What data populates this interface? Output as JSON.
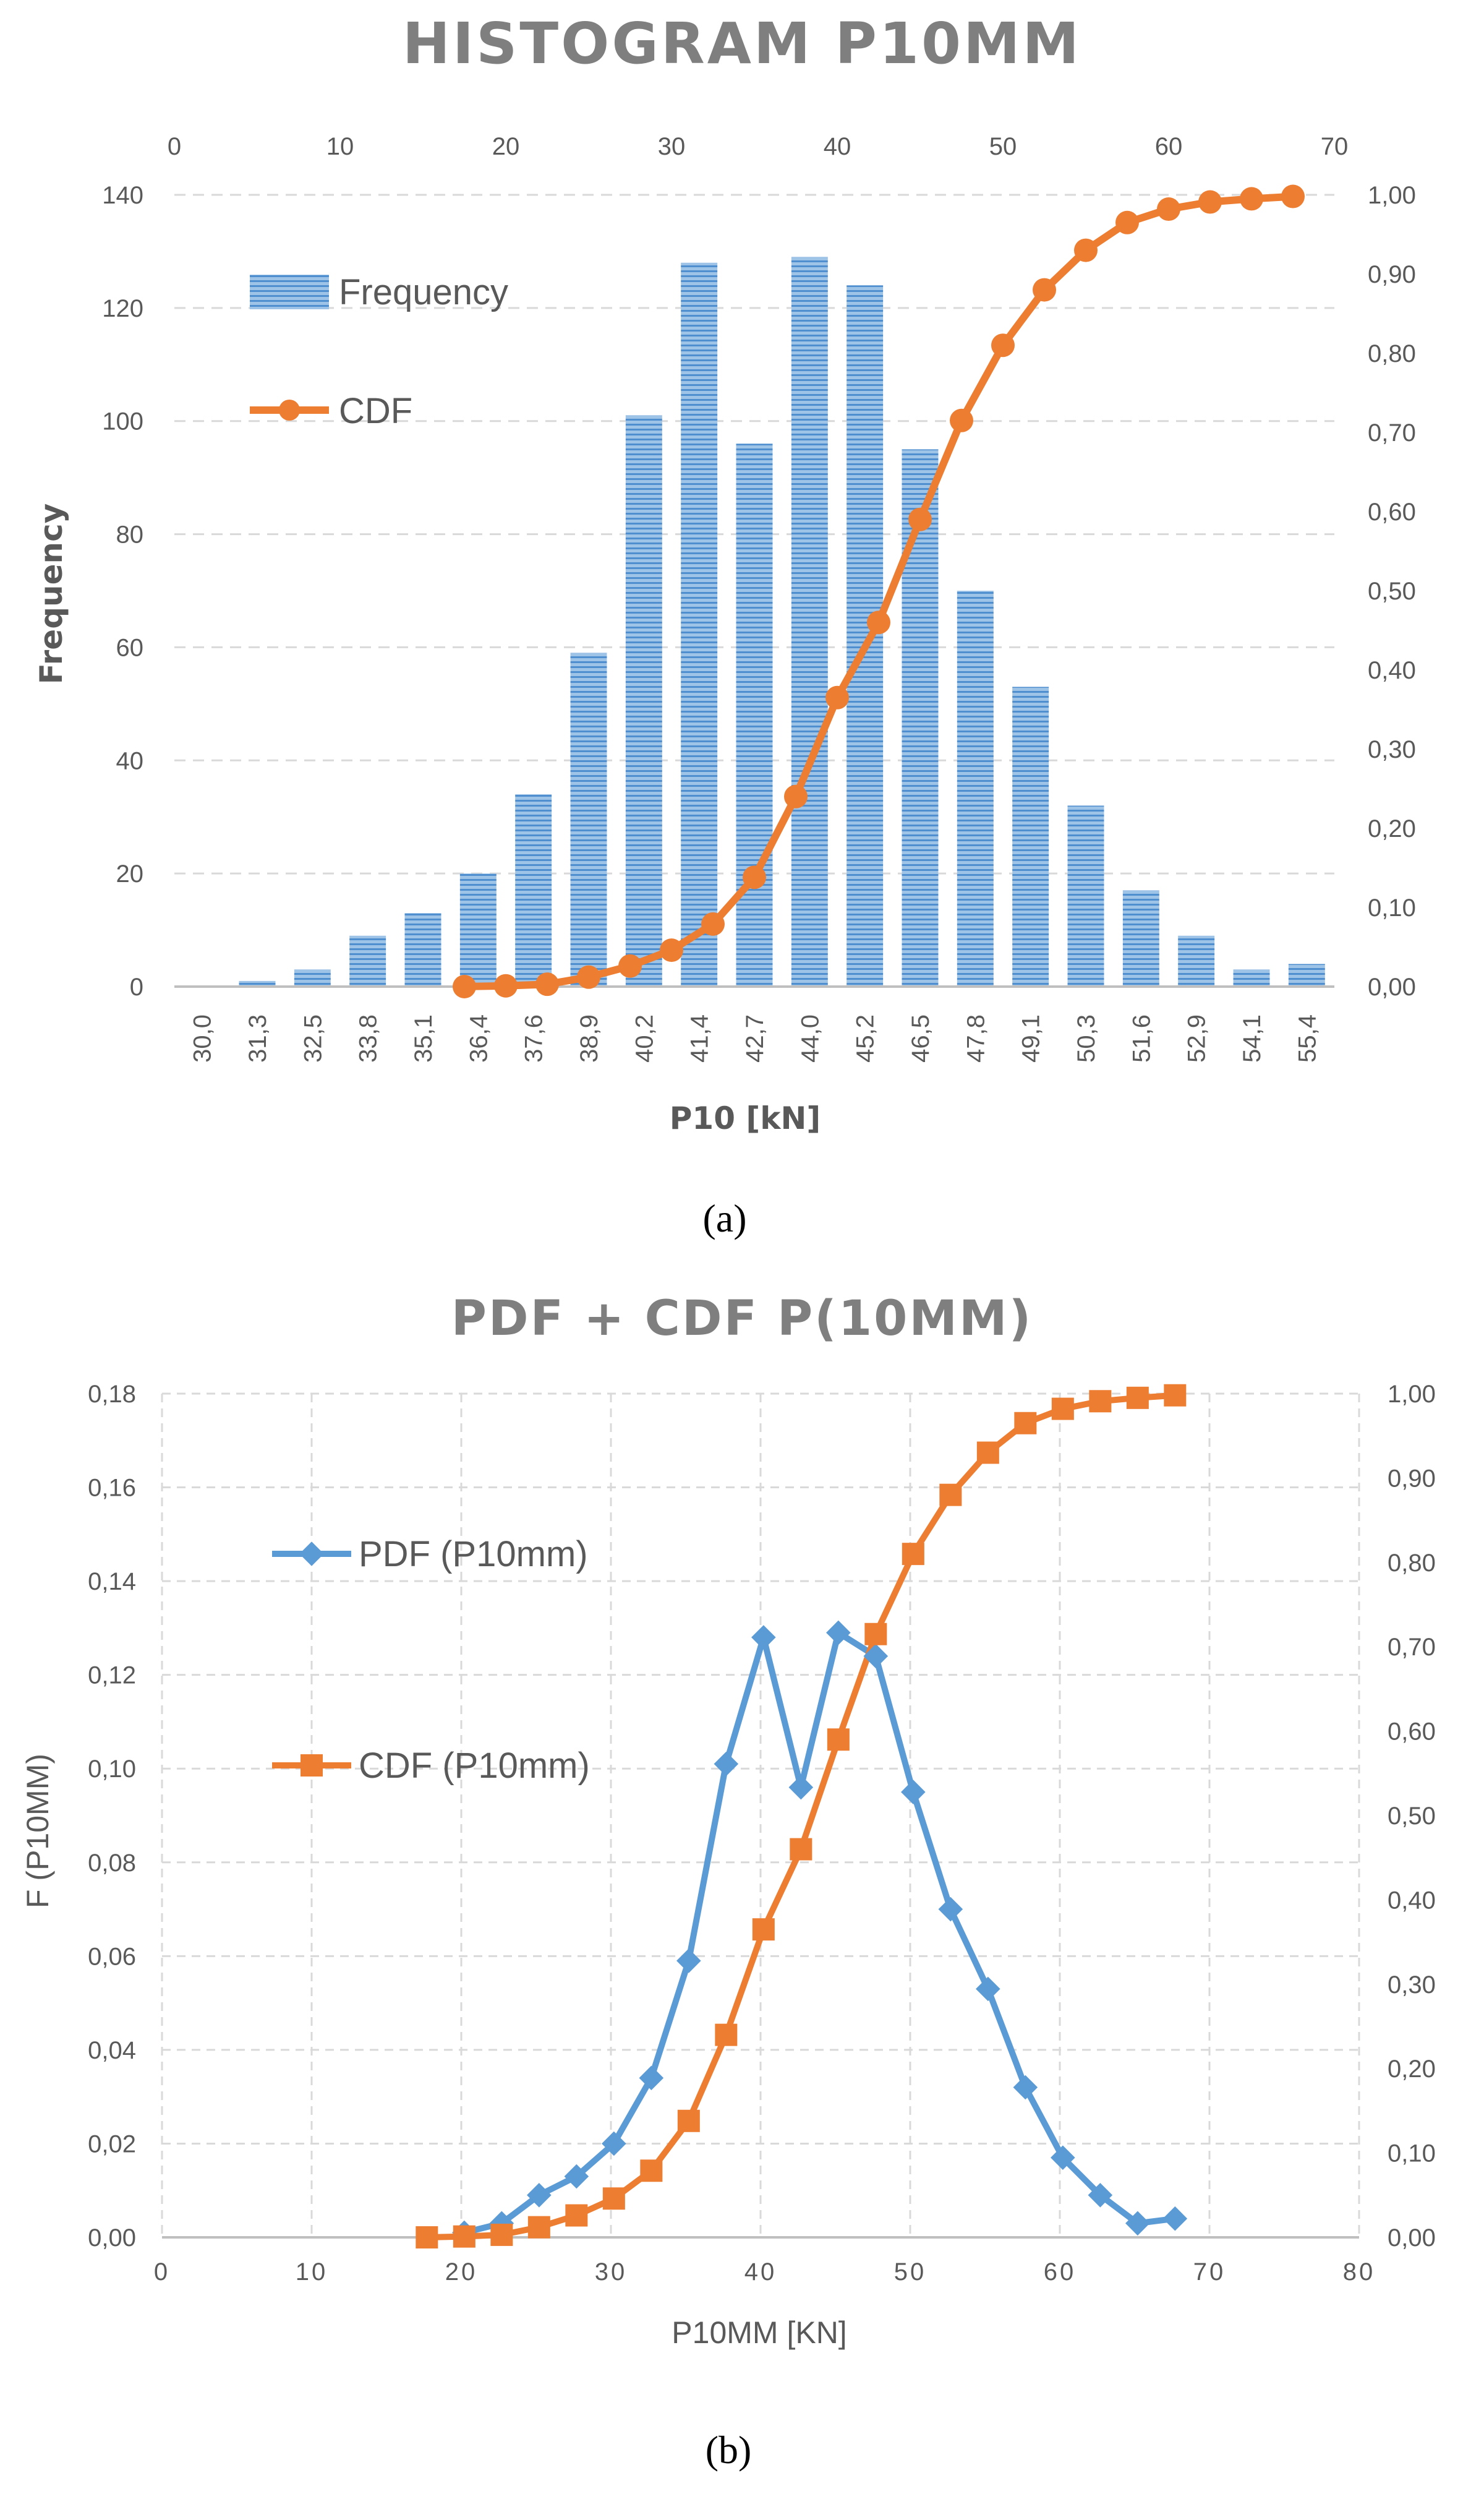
{
  "chart_data": [
    {
      "type": "bar",
      "title": "HISTOGRAM P10MM",
      "caption": "(a)",
      "xlabel": "P10 [kN]",
      "ylabel": "Frequency",
      "categories": [
        "30,0",
        "31,3",
        "32,5",
        "33,8",
        "35,1",
        "36,4",
        "37,6",
        "38,9",
        "40,2",
        "41,4",
        "42,7",
        "44,0",
        "45,2",
        "46,5",
        "47,8",
        "49,1",
        "50,3",
        "51,6",
        "52,9",
        "54,1",
        "55,4"
      ],
      "y_ticks": [
        "0",
        "20",
        "40",
        "60",
        "80",
        "100",
        "120",
        "140"
      ],
      "ylim": [
        0,
        140
      ],
      "y2_ticks": [
        "0,00",
        "0,10",
        "0,20",
        "0,30",
        "0,40",
        "0,50",
        "0,60",
        "0,70",
        "0,80",
        "0,90",
        "1,00"
      ],
      "y2lim": [
        0,
        1
      ],
      "x2_ticks": [
        "0",
        "10",
        "20",
        "30",
        "40",
        "50",
        "60",
        "70"
      ],
      "x2lim": [
        0,
        70
      ],
      "series": [
        {
          "name": "Frequency",
          "color": "#5b9bd5",
          "values": [
            0,
            1,
            3,
            9,
            13,
            20,
            34,
            59,
            101,
            128,
            96,
            129,
            124,
            95,
            70,
            53,
            32,
            17,
            9,
            3,
            4
          ]
        },
        {
          "name": "CDF",
          "color": "#ed7d31",
          "x": [
            17.5,
            20,
            22.5,
            25,
            27.5,
            30,
            32.5,
            35,
            37.5,
            40,
            42.5,
            45,
            47.5,
            50,
            52.5,
            55,
            57.5,
            60,
            62.5,
            65,
            67.5
          ],
          "values": [
            0.0,
            0.001,
            0.003,
            0.012,
            0.026,
            0.046,
            0.079,
            0.138,
            0.24,
            0.365,
            0.46,
            0.59,
            0.715,
            0.81,
            0.88,
            0.93,
            0.965,
            0.982,
            0.991,
            0.995,
            0.998
          ]
        }
      ]
    },
    {
      "type": "line",
      "title": "PDF + CDF P(10MM)",
      "caption": "(b)",
      "xlabel": "P10MM [KN]",
      "ylabel": "F (P10MM)",
      "x_ticks": [
        "0",
        "10",
        "20",
        "30",
        "40",
        "50",
        "60",
        "70",
        "80"
      ],
      "xlim": [
        0,
        80
      ],
      "y_ticks": [
        "0,00",
        "0,02",
        "0,04",
        "0,06",
        "0,08",
        "0,10",
        "0,12",
        "0,14",
        "0,16",
        "0,18"
      ],
      "ylim": [
        0,
        0.18
      ],
      "y2_ticks": [
        "0,00",
        "0,10",
        "0,20",
        "0,30",
        "0,40",
        "0,50",
        "0,60",
        "0,70",
        "0,80",
        "0,90",
        "1,00"
      ],
      "y2lim": [
        0,
        1
      ],
      "series": [
        {
          "name": "PDF (P10mm)",
          "color": "#5b9bd5",
          "marker": "diamond",
          "x": [
            20.2,
            22.7,
            25.2,
            27.7,
            30.2,
            32.7,
            35.2,
            37.7,
            40.2,
            42.7,
            45.2,
            47.7,
            50.2,
            52.7,
            55.2,
            57.7,
            60.2,
            62.7,
            65.2,
            67.7
          ],
          "values": [
            0.001,
            0.003,
            0.009,
            0.013,
            0.02,
            0.034,
            0.059,
            0.101,
            0.128,
            0.096,
            0.129,
            0.124,
            0.095,
            0.07,
            0.053,
            0.032,
            0.017,
            0.009,
            0.003,
            0.004
          ]
        },
        {
          "name": "CDF (P10mm)",
          "color": "#ed7d31",
          "marker": "square",
          "x": [
            17.7,
            20.2,
            22.7,
            25.2,
            27.7,
            30.2,
            32.7,
            35.2,
            37.7,
            40.2,
            42.7,
            45.2,
            47.7,
            50.2,
            52.7,
            55.2,
            57.7,
            60.2,
            62.7,
            65.2,
            67.7
          ],
          "values": [
            0.0,
            0.001,
            0.003,
            0.012,
            0.026,
            0.046,
            0.079,
            0.138,
            0.24,
            0.365,
            0.46,
            0.59,
            0.715,
            0.81,
            0.88,
            0.93,
            0.965,
            0.982,
            0.991,
            0.995,
            0.998
          ]
        }
      ]
    }
  ]
}
